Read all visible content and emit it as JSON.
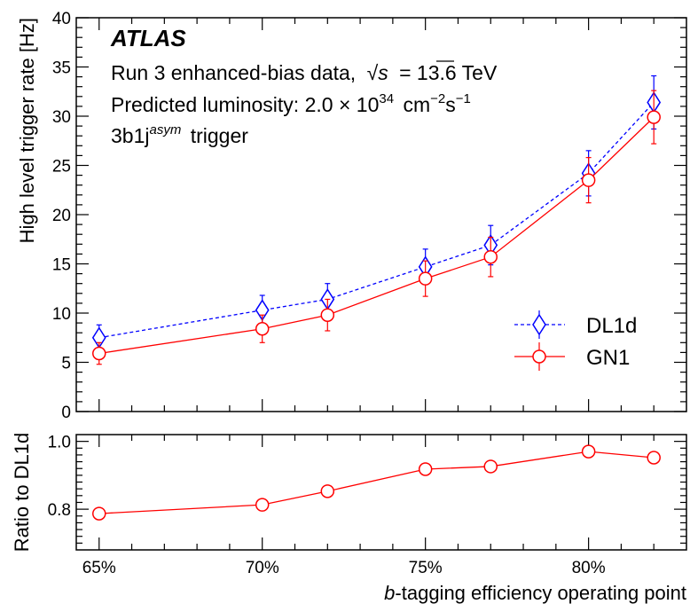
{
  "experiment_label": "ATLAS",
  "annotations": {
    "line1_prefix": "Run 3 enhanced-bias data,",
    "line1_sqrt_symbol": "√",
    "line1_sqrt_var": "s",
    "line1_suffix": "= 13.6 TeV",
    "line2_prefix": "Predicted luminosity: 2.0 × 10",
    "line2_exp": "34",
    "line2_unit": "cm",
    "line2_unit_exp": "−2",
    "line2_unit2": "s",
    "line2_unit2_exp": "−1",
    "line3_prefix": "3b1j",
    "line3_sup": "asym",
    "line3_suffix": "trigger"
  },
  "chart_data": [
    {
      "type": "line",
      "panel": "main",
      "xlabel_italic": "b",
      "xlabel_rest": "-tagging efficiency operating point",
      "ylabel": "High level trigger rate [Hz]",
      "x": [
        65,
        70,
        72,
        75,
        77,
        80,
        82
      ],
      "xlim": [
        64.3,
        83
      ],
      "ylim": [
        0,
        40
      ],
      "y_ticks": [
        0,
        5,
        10,
        15,
        20,
        25,
        30,
        35,
        40
      ],
      "x_tick_labels": [
        "65%",
        "70%",
        "75%",
        "80%"
      ],
      "x_tick_values": [
        65,
        70,
        75,
        80
      ],
      "legend_position": "right",
      "series": [
        {
          "name": "DL1d",
          "color": "#0000ff",
          "line_style": "dashed",
          "marker": "open-diamond",
          "values": [
            7.5,
            10.3,
            11.4,
            14.7,
            16.9,
            24.2,
            31.4
          ],
          "errors": [
            1.3,
            1.5,
            1.6,
            1.8,
            2.0,
            2.3,
            2.7
          ]
        },
        {
          "name": "GN1",
          "color": "#ff0000",
          "line_style": "solid",
          "marker": "open-circle",
          "values": [
            5.9,
            8.4,
            9.8,
            13.5,
            15.7,
            23.5,
            29.9
          ],
          "errors": [
            1.1,
            1.4,
            1.6,
            1.8,
            2.0,
            2.3,
            2.7
          ]
        }
      ]
    },
    {
      "type": "line",
      "panel": "ratio",
      "ylabel": "Ratio to DL1d",
      "x": [
        65,
        70,
        72,
        75,
        77,
        80,
        82
      ],
      "xlim": [
        64.3,
        83
      ],
      "ylim": [
        0.68,
        1.02
      ],
      "y_tick_labels": [
        "0.8",
        "1.0"
      ],
      "y_tick_values": [
        0.8,
        1.0
      ],
      "series": [
        {
          "color": "#ff0000",
          "marker": "open-circle",
          "values": [
            0.787,
            0.813,
            0.853,
            0.918,
            0.926,
            0.97,
            0.952
          ]
        }
      ]
    }
  ]
}
